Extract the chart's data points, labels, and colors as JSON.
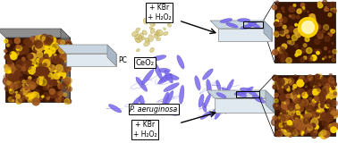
{
  "fig_width": 3.78,
  "fig_height": 1.6,
  "dpi": 100,
  "bg_color": "#ffffff",
  "pc_label": "PC",
  "ceo2_label": "CeO₂",
  "bacteria_label": "P. aeruginosa",
  "top_reagent": "+ KBr\n+ H₂O₂",
  "bot_reagent": "+ KBr\n+ H₂O₂",
  "bacteria_color": "#7B68EE",
  "ceo2_color": "#D4C77A",
  "afm_bg": "#3B1500",
  "afm_mid": "#8B4000",
  "afm_bright": "#FFD700",
  "slide_top": "#C8D4E0",
  "slide_front": "#E0E8F0",
  "slide_right": "#A8B8C8"
}
